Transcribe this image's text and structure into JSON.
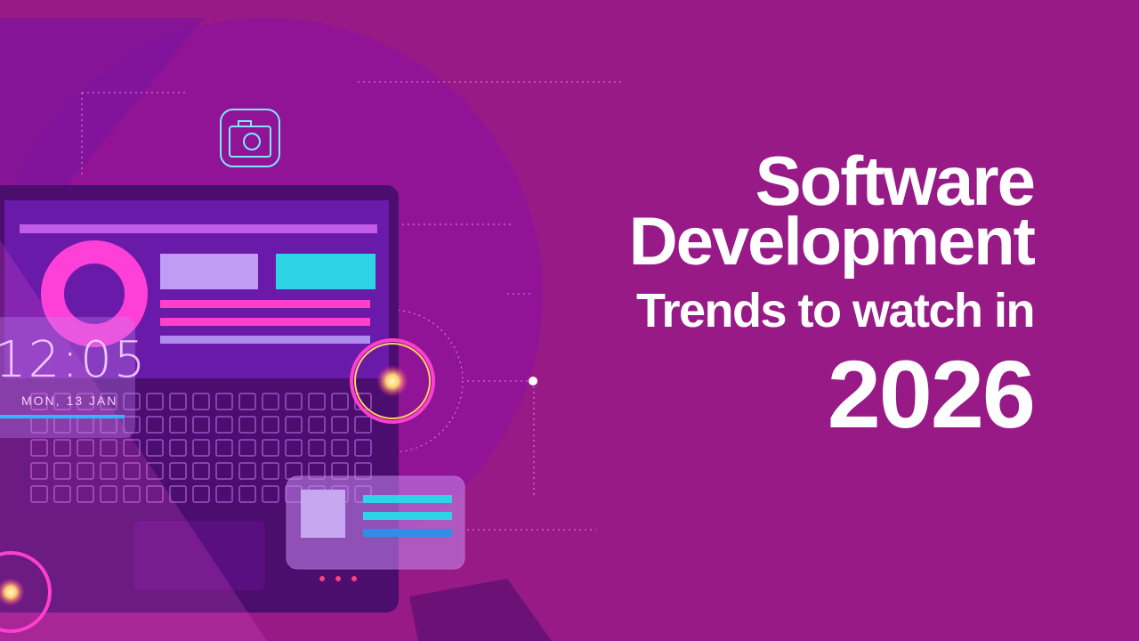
{
  "headline": {
    "line1": "Software",
    "line2": "Development",
    "line3": "Trends to watch in",
    "line4": "2026"
  },
  "clock_widget": {
    "time": "12:05",
    "date": "MON, 13 JAN"
  },
  "icons": [
    "camera-icon"
  ],
  "colors": {
    "background": "#971a87",
    "text": "#ffffff",
    "accent_cyan": "#2fd3e6",
    "accent_pink": "#ff3fd0"
  }
}
